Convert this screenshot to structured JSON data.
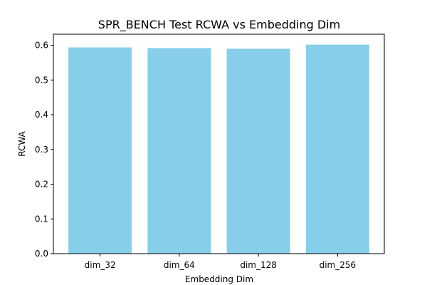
{
  "chart_data": {
    "type": "bar",
    "title": "SPR_BENCH Test RCWA vs Embedding Dim",
    "xlabel": "Embedding Dim",
    "ylabel": "RCWA",
    "categories": [
      "dim_32",
      "dim_64",
      "dim_128",
      "dim_256"
    ],
    "values": [
      0.594,
      0.592,
      0.59,
      0.602
    ],
    "ylim": [
      0,
      0.632
    ],
    "yticks": [
      0.0,
      0.1,
      0.2,
      0.3,
      0.4,
      0.5,
      0.6
    ],
    "ytick_labels": [
      "0.0",
      "0.1",
      "0.2",
      "0.3",
      "0.4",
      "0.5",
      "0.6"
    ],
    "bar_color": "#87ceeb",
    "grid": false,
    "legend": "none"
  }
}
